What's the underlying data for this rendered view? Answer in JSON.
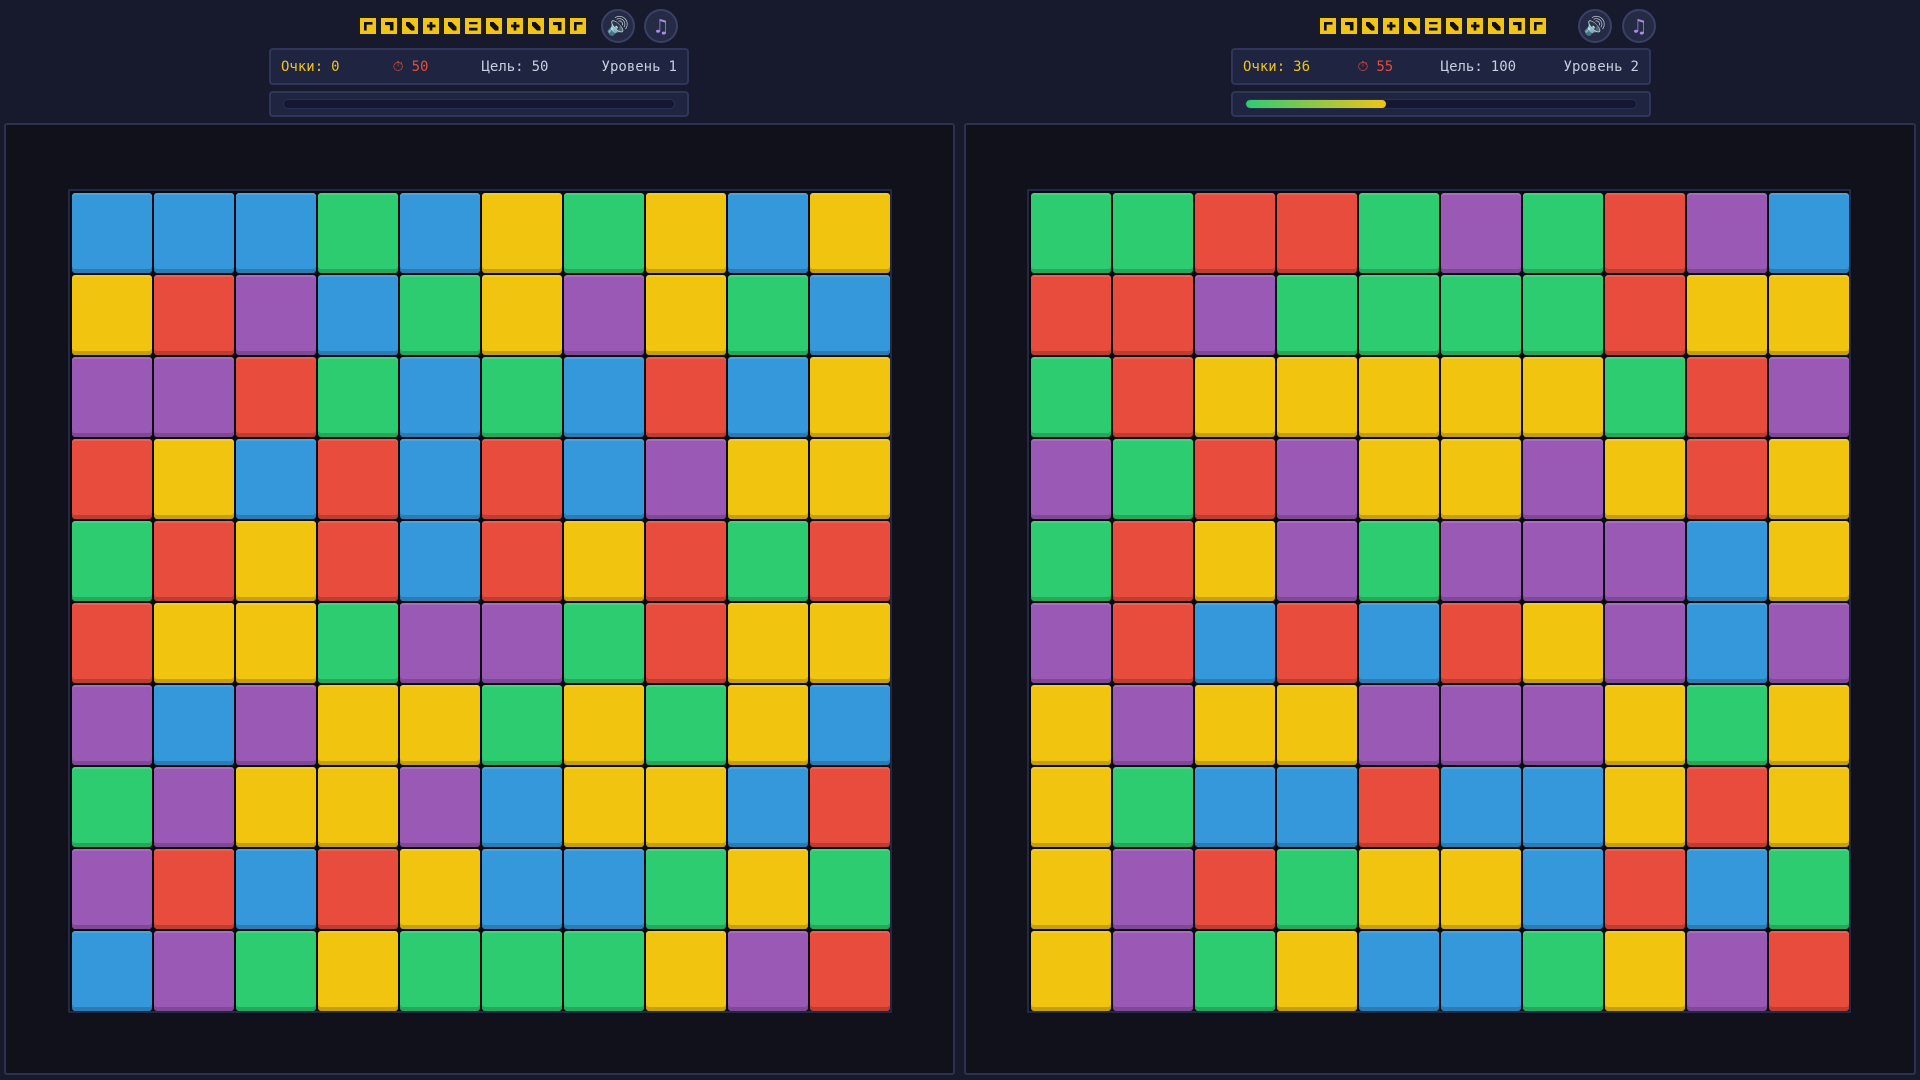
{
  "colors": {
    "blue": "#3498db",
    "red": "#e74c3c",
    "green": "#2ecc71",
    "yellow": "#f1c40f",
    "purple": "#9b59b6"
  },
  "icons": {
    "sound": "speaker-icon",
    "music": "music-note-icon"
  },
  "left": {
    "score_label": "Очки:",
    "score": "0",
    "time_icon": "⏱",
    "time": "50",
    "goal_label": "Цель:",
    "goal": "50",
    "level_label": "Уровень",
    "level": "1",
    "progress_fraction": 0.0,
    "grid": [
      [
        "blue",
        "blue",
        "blue",
        "green",
        "blue",
        "yellow",
        "green",
        "yellow",
        "blue",
        "yellow"
      ],
      [
        "yellow",
        "red",
        "purple",
        "blue",
        "green",
        "yellow",
        "purple",
        "yellow",
        "green",
        "blue"
      ],
      [
        "purple",
        "purple",
        "red",
        "green",
        "blue",
        "green",
        "blue",
        "red",
        "blue",
        "yellow"
      ],
      [
        "red",
        "yellow",
        "blue",
        "red",
        "blue",
        "red",
        "blue",
        "purple",
        "yellow",
        "yellow"
      ],
      [
        "green",
        "red",
        "yellow",
        "red",
        "blue",
        "red",
        "yellow",
        "red",
        "green",
        "red"
      ],
      [
        "red",
        "yellow",
        "yellow",
        "green",
        "purple",
        "purple",
        "green",
        "red",
        "yellow",
        "yellow"
      ],
      [
        "purple",
        "blue",
        "purple",
        "yellow",
        "yellow",
        "green",
        "yellow",
        "green",
        "yellow",
        "blue"
      ],
      [
        "green",
        "purple",
        "yellow",
        "yellow",
        "purple",
        "blue",
        "yellow",
        "yellow",
        "blue",
        "red"
      ],
      [
        "purple",
        "red",
        "blue",
        "red",
        "yellow",
        "blue",
        "blue",
        "green",
        "yellow",
        "green"
      ],
      [
        "blue",
        "purple",
        "green",
        "yellow",
        "green",
        "green",
        "green",
        "yellow",
        "purple",
        "red"
      ]
    ]
  },
  "right": {
    "score_label": "Очки:",
    "score": "36",
    "time_icon": "⏱",
    "time": "55",
    "goal_label": "Цель:",
    "goal": "100",
    "level_label": "Уровень",
    "level": "2",
    "progress_fraction": 0.36,
    "grid": [
      [
        "green",
        "green",
        "red",
        "red",
        "green",
        "purple",
        "green",
        "red",
        "purple",
        "blue"
      ],
      [
        "red",
        "red",
        "purple",
        "green",
        "green",
        "green",
        "green",
        "red",
        "yellow",
        "yellow"
      ],
      [
        "green",
        "red",
        "yellow",
        "yellow",
        "yellow",
        "yellow",
        "yellow",
        "green",
        "red",
        "purple"
      ],
      [
        "purple",
        "green",
        "red",
        "purple",
        "yellow",
        "yellow",
        "purple",
        "yellow",
        "red",
        "yellow"
      ],
      [
        "green",
        "red",
        "yellow",
        "purple",
        "green",
        "purple",
        "purple",
        "purple",
        "blue",
        "yellow"
      ],
      [
        "purple",
        "red",
        "blue",
        "red",
        "blue",
        "red",
        "yellow",
        "purple",
        "blue",
        "purple"
      ],
      [
        "yellow",
        "purple",
        "yellow",
        "yellow",
        "purple",
        "purple",
        "purple",
        "yellow",
        "green",
        "yellow"
      ],
      [
        "yellow",
        "green",
        "blue",
        "blue",
        "red",
        "blue",
        "blue",
        "yellow",
        "red",
        "yellow"
      ],
      [
        "yellow",
        "purple",
        "red",
        "green",
        "yellow",
        "yellow",
        "blue",
        "red",
        "blue",
        "green"
      ],
      [
        "yellow",
        "purple",
        "green",
        "yellow",
        "blue",
        "blue",
        "green",
        "yellow",
        "purple",
        "red"
      ]
    ]
  }
}
